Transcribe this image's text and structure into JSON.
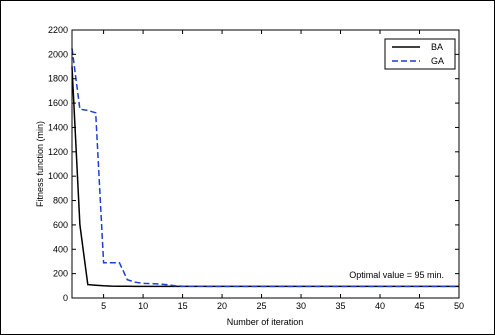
{
  "chart_data": {
    "type": "line",
    "title": "",
    "xlabel": "Number of iteration",
    "ylabel": "Fitness function (min)",
    "xlim": [
      1,
      50
    ],
    "ylim": [
      0,
      2200
    ],
    "xticks": [
      5,
      10,
      15,
      20,
      25,
      30,
      35,
      40,
      45,
      50
    ],
    "yticks": [
      0,
      200,
      400,
      600,
      800,
      1000,
      1200,
      1400,
      1600,
      1800,
      2000,
      2200
    ],
    "grid": false,
    "legend_position": "top-right",
    "annotation": "Optimal value = 95 min.",
    "series": [
      {
        "name": "BA",
        "color": "#000000",
        "style": "solid",
        "x": [
          1,
          2,
          3,
          4,
          5,
          6,
          7,
          8,
          9,
          10,
          15,
          20,
          30,
          40,
          50
        ],
        "y": [
          1900,
          600,
          110,
          105,
          100,
          98,
          97,
          96,
          95,
          95,
          95,
          95,
          95,
          95,
          95
        ]
      },
      {
        "name": "GA",
        "color": "#1f3fd0",
        "style": "dashed",
        "x": [
          1,
          2,
          3,
          4,
          5,
          6,
          7,
          8,
          9,
          10,
          11,
          12,
          13,
          14,
          15,
          20,
          25,
          30,
          35,
          40,
          45,
          50
        ],
        "y": [
          2050,
          1550,
          1540,
          1520,
          290,
          290,
          290,
          150,
          130,
          120,
          118,
          115,
          110,
          100,
          97,
          95,
          95,
          95,
          95,
          95,
          95,
          95
        ]
      }
    ]
  }
}
